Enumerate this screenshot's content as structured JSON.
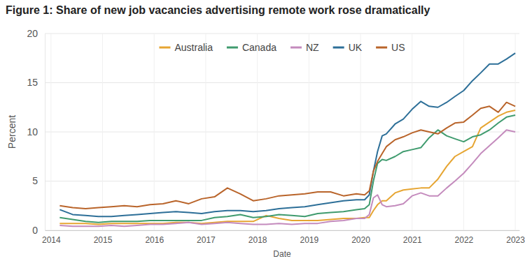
{
  "chart_data": {
    "type": "line",
    "title": "Figure 1: Share of new job vacancies advertising remote work rose dramatically",
    "xlabel": "Date",
    "ylabel": "Percent",
    "x": [
      2014.17,
      2014.42,
      2014.67,
      2014.92,
      2015.17,
      2015.42,
      2015.67,
      2015.92,
      2016.17,
      2016.42,
      2016.67,
      2016.92,
      2017.17,
      2017.42,
      2017.67,
      2017.92,
      2018.17,
      2018.42,
      2018.67,
      2018.92,
      2019.17,
      2019.42,
      2019.67,
      2019.92,
      2020.08,
      2020.17,
      2020.25,
      2020.33,
      2020.42,
      2020.5,
      2020.67,
      2020.83,
      2021.0,
      2021.17,
      2021.33,
      2021.5,
      2021.67,
      2021.83,
      2022.0,
      2022.17,
      2022.33,
      2022.5,
      2022.67,
      2022.83,
      2023.0
    ],
    "series": [
      {
        "name": "Australia",
        "color": "#e6a532",
        "values": [
          0.7,
          0.7,
          0.7,
          0.6,
          0.7,
          0.7,
          0.7,
          0.7,
          0.7,
          0.8,
          0.8,
          0.7,
          0.8,
          0.9,
          0.9,
          0.9,
          1.5,
          1.2,
          1.0,
          1.0,
          1.0,
          1.1,
          1.2,
          1.2,
          1.3,
          1.3,
          2.0,
          2.6,
          3.0,
          3.0,
          3.8,
          4.1,
          4.2,
          4.3,
          4.3,
          5.2,
          6.5,
          7.5,
          8.0,
          8.5,
          10.4,
          11.0,
          11.6,
          12.0,
          12.2
        ]
      },
      {
        "name": "Canada",
        "color": "#3f9b6e",
        "values": [
          1.3,
          1.1,
          0.9,
          0.8,
          0.9,
          0.9,
          0.9,
          1.0,
          1.0,
          1.0,
          1.0,
          1.0,
          1.3,
          1.4,
          1.6,
          1.3,
          1.4,
          1.6,
          1.5,
          1.4,
          1.7,
          1.8,
          1.9,
          2.1,
          2.2,
          2.6,
          5.0,
          6.8,
          7.2,
          7.1,
          7.5,
          8.0,
          8.2,
          8.4,
          9.4,
          10.2,
          9.6,
          9.3,
          9.0,
          9.5,
          9.7,
          10.2,
          10.9,
          11.5,
          11.7
        ]
      },
      {
        "name": "NZ",
        "color": "#c48bbd",
        "values": [
          0.5,
          0.4,
          0.4,
          0.4,
          0.5,
          0.4,
          0.5,
          0.6,
          0.6,
          0.7,
          0.8,
          0.6,
          0.7,
          0.8,
          0.7,
          0.6,
          0.6,
          0.7,
          0.6,
          0.7,
          0.7,
          0.9,
          1.0,
          1.2,
          1.2,
          1.6,
          3.3,
          3.6,
          2.6,
          2.4,
          2.5,
          2.7,
          3.5,
          3.8,
          3.5,
          3.5,
          4.3,
          5.0,
          5.8,
          6.8,
          7.8,
          8.6,
          9.4,
          10.2,
          10.0
        ]
      },
      {
        "name": "UK",
        "color": "#2d6f98",
        "values": [
          2.1,
          1.6,
          1.5,
          1.4,
          1.4,
          1.5,
          1.6,
          1.7,
          1.8,
          1.9,
          1.8,
          1.7,
          1.9,
          2.0,
          2.0,
          1.9,
          2.0,
          2.2,
          2.3,
          2.4,
          2.6,
          2.8,
          3.0,
          3.1,
          3.1,
          3.6,
          6.0,
          8.0,
          9.6,
          9.8,
          10.8,
          11.3,
          12.3,
          13.1,
          12.6,
          12.5,
          13.0,
          13.6,
          14.2,
          15.2,
          16.0,
          16.9,
          16.9,
          17.4,
          18.0
        ]
      },
      {
        "name": "US",
        "color": "#b9642a",
        "values": [
          2.5,
          2.3,
          2.2,
          2.3,
          2.4,
          2.5,
          2.4,
          2.6,
          2.7,
          3.0,
          2.7,
          3.2,
          3.4,
          4.3,
          3.7,
          3.0,
          3.2,
          3.5,
          3.6,
          3.7,
          3.9,
          3.9,
          3.5,
          3.7,
          3.6,
          4.0,
          6.0,
          7.0,
          7.8,
          8.5,
          9.2,
          9.5,
          9.9,
          10.2,
          10.0,
          9.8,
          10.4,
          10.9,
          11.0,
          11.7,
          12.4,
          12.6,
          12.0,
          13.0,
          12.6
        ]
      }
    ],
    "xlim": [
      2013.88,
      2023.08
    ],
    "xticks": [
      2014,
      2015,
      2016,
      2017,
      2018,
      2019,
      2020,
      2021,
      2022,
      2023
    ],
    "ylim": [
      0,
      20
    ],
    "yticks": [
      0,
      5,
      10,
      15,
      20
    ],
    "grid": true,
    "legend": "top"
  }
}
